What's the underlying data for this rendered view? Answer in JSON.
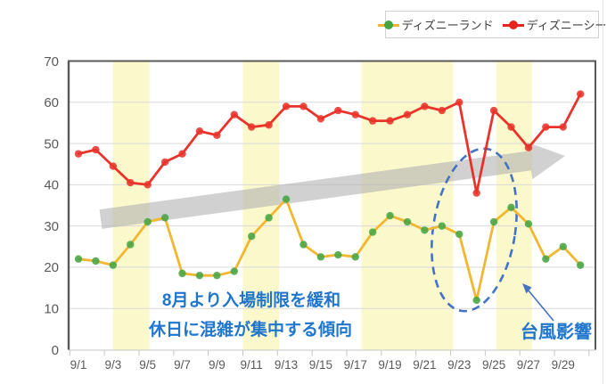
{
  "chart_data": {
    "type": "line",
    "title": "",
    "ylim": [
      0,
      70
    ],
    "y_ticks": [
      0,
      10,
      20,
      30,
      40,
      50,
      60,
      70
    ],
    "x_tick_labels": [
      "9/1",
      "9/3",
      "9/5",
      "9/7",
      "9/9",
      "9/11",
      "9/13",
      "9/15",
      "9/17",
      "9/19",
      "9/21",
      "9/23",
      "9/25",
      "9/27",
      "9/29"
    ],
    "categories": [
      "9/1",
      "9/2",
      "9/3",
      "9/4",
      "9/5",
      "9/6",
      "9/7",
      "9/8",
      "9/9",
      "9/10",
      "9/11",
      "9/12",
      "9/13",
      "9/14",
      "9/15",
      "9/16",
      "9/17",
      "9/18",
      "9/19",
      "9/20",
      "9/21",
      "9/22",
      "9/23",
      "9/24",
      "9/25",
      "9/26",
      "9/27",
      "9/28",
      "9/29",
      "9/30"
    ],
    "grid": true,
    "legend_position": "top-right",
    "series": [
      {
        "name": "ディズニーランド",
        "line_color": "#f2b732",
        "marker_color": "#45a545",
        "values": [
          22,
          21.5,
          20.5,
          25.5,
          31,
          32,
          18.5,
          18,
          18,
          19,
          27.5,
          32,
          36.5,
          25.5,
          22.5,
          23,
          22.5,
          28.5,
          32.5,
          31,
          29,
          30,
          28,
          12,
          31,
          34.5,
          30.5,
          22,
          25,
          20.5
        ]
      },
      {
        "name": "ディズニーシー",
        "line_color": "#e8251d",
        "marker_color": "#e8251d",
        "values": [
          47.5,
          48.5,
          44.5,
          40.5,
          40,
          45.5,
          47.5,
          53,
          52,
          57,
          54,
          54.5,
          59,
          59,
          56,
          58,
          57,
          55.5,
          55.5,
          57,
          59,
          58,
          60,
          38,
          58,
          54,
          49,
          54,
          54,
          62
        ]
      }
    ],
    "highlight_bands": {
      "color": "#fbf8cb",
      "day_ranges": [
        [
          3.0,
          5.1
        ],
        [
          10.5,
          12.6
        ],
        [
          17.35,
          22.65
        ],
        [
          25.15,
          27.2
        ]
      ]
    },
    "notes": {
      "easing": "8月より入場制限を緩和",
      "weekend": "休日に混雑が集中する傾向",
      "typhoon": "台風影響"
    },
    "annotations": {
      "trend_arrow": {
        "kind": "thick-arrow",
        "color": "#b3b3b3",
        "from_day": 2.3,
        "from_value": 31.7,
        "to_day": 29.1,
        "to_value": 47
      },
      "typhoon_ellipse": {
        "kind": "dashed-ellipse",
        "color": "#4472c4",
        "center_day": 23.9,
        "center_value": 29,
        "rx_days": 2.4,
        "ry_values": 20
      },
      "typhoon_pointer": {
        "kind": "small-arrow",
        "color": "#4472c4"
      }
    },
    "colors": {
      "note_text": "#1f76cc",
      "annotation_blue": "#4472c4",
      "trend_arrow": "#b3b3b3",
      "grid": "#d9d9d9",
      "axis_text": "#595959",
      "band": "#fbf8cb"
    }
  }
}
